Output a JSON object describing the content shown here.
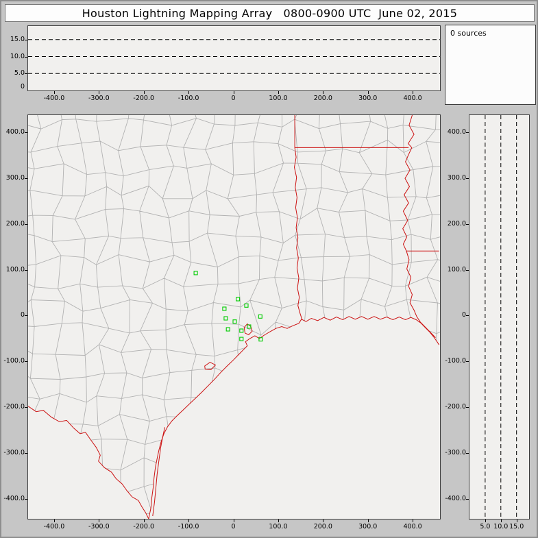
{
  "title": "Houston Lightning Mapping Array   0800-0900 UTC  June 02, 2015",
  "sources_label": "0 sources",
  "colors": {
    "page_bg": "#c6c6c6",
    "panel_bg": "#f1f0ee",
    "state_border": "#cc1111",
    "county": "#b2b2b2",
    "station": "#00cc00",
    "gridline": "#000000"
  },
  "axes": {
    "ew": {
      "min": -458,
      "max": 461,
      "values": [
        -400,
        -300,
        -200,
        -100,
        0,
        100,
        200,
        300,
        400
      ],
      "labels": [
        "-400.0",
        "-300.0",
        "-200.0",
        "-100.0",
        "0",
        "100.0",
        "200.0",
        "300.0",
        "400.0"
      ]
    },
    "ns": {
      "min": -444,
      "max": 438,
      "values": [
        400,
        300,
        200,
        100,
        0,
        -100,
        -200,
        -300,
        -400
      ],
      "labels": [
        "400.0",
        "300.0",
        "200.0",
        "100.0",
        "0",
        "-100.0",
        "-200.0",
        "-300.0",
        "-400.0"
      ]
    },
    "alt": {
      "min": 0,
      "max": 19,
      "values": [
        15,
        10,
        5
      ],
      "labels": [
        "15.0",
        "10.0",
        "5.0"
      ],
      "bottom_values": [
        5,
        10,
        15
      ],
      "bottom_labels": [
        "5.0",
        "10.0",
        "15.0"
      ],
      "zero_label": "0"
    }
  },
  "chart_data": {
    "type": "scatter",
    "title": "Houston Lightning Mapping Array 0800-0900 UTC June 02, 2015",
    "sources_count": 0,
    "sources_label": "0 sources",
    "plan_view": {
      "xlim": [
        -458,
        461
      ],
      "ylim": [
        -444,
        438
      ],
      "xticks": [
        -400,
        -300,
        -200,
        -100,
        0,
        100,
        200,
        300,
        400
      ],
      "yticks": [
        -400,
        -300,
        -200,
        -100,
        0,
        100,
        200,
        300,
        400
      ],
      "grid": false,
      "basemap": "Texas/Louisiana counties with state borders and Gulf coastline"
    },
    "altitude_panels": {
      "lim": [
        0,
        19
      ],
      "ticks": [
        5,
        10,
        15
      ],
      "gridline_style": "dashed",
      "points": []
    },
    "series": [
      {
        "name": "LMA stations",
        "marker": "open-green-square",
        "points_km_east_north": [
          [
            -84,
            93
          ],
          [
            10,
            36
          ],
          [
            -20,
            15
          ],
          [
            29,
            22
          ],
          [
            -17,
            -6
          ],
          [
            3,
            -13
          ],
          [
            -12,
            -30
          ],
          [
            18,
            -33
          ],
          [
            35,
            -24
          ],
          [
            60,
            -2
          ],
          [
            18,
            -51
          ],
          [
            61,
            -52
          ]
        ]
      }
    ]
  },
  "map": {
    "rio_grande": [
      [
        -458,
        -198
      ],
      [
        -440,
        -210
      ],
      [
        -424,
        -207
      ],
      [
        -406,
        -222
      ],
      [
        -388,
        -232
      ],
      [
        -372,
        -229
      ],
      [
        -356,
        -246
      ],
      [
        -342,
        -258
      ],
      [
        -330,
        -255
      ],
      [
        -318,
        -272
      ],
      [
        -306,
        -288
      ],
      [
        -297,
        -305
      ],
      [
        -301,
        -318
      ],
      [
        -288,
        -332
      ],
      [
        -272,
        -342
      ],
      [
        -262,
        -356
      ],
      [
        -248,
        -368
      ],
      [
        -238,
        -382
      ],
      [
        -226,
        -396
      ],
      [
        -212,
        -404
      ],
      [
        -204,
        -418
      ],
      [
        -196,
        -430
      ],
      [
        -189,
        -444
      ]
    ],
    "coast": [
      [
        -189,
        -444
      ],
      [
        -184,
        -420
      ],
      [
        -182,
        -398
      ],
      [
        -179,
        -376
      ],
      [
        -177,
        -354
      ],
      [
        -174,
        -332
      ],
      [
        -170,
        -312
      ],
      [
        -166,
        -293
      ],
      [
        -161,
        -275
      ],
      [
        -155,
        -258
      ],
      [
        -147,
        -243
      ],
      [
        -137,
        -230
      ],
      [
        -125,
        -218
      ],
      [
        -112,
        -206
      ],
      [
        -98,
        -193
      ],
      [
        -84,
        -180
      ],
      [
        -70,
        -167
      ],
      [
        -56,
        -153
      ],
      [
        -42,
        -139
      ],
      [
        -28,
        -124
      ],
      [
        -14,
        -110
      ],
      [
        0,
        -97
      ],
      [
        11,
        -86
      ],
      [
        21,
        -76
      ],
      [
        31,
        -66
      ],
      [
        27,
        -57
      ],
      [
        37,
        -50
      ],
      [
        48,
        -44
      ],
      [
        58,
        -50
      ],
      [
        70,
        -42
      ],
      [
        82,
        -35
      ],
      [
        95,
        -28
      ],
      [
        108,
        -24
      ],
      [
        120,
        -28
      ],
      [
        133,
        -22
      ],
      [
        146,
        -17
      ],
      [
        152,
        -8
      ],
      [
        162,
        -13
      ],
      [
        174,
        -6
      ],
      [
        188,
        -11
      ],
      [
        202,
        -4
      ],
      [
        216,
        -10
      ],
      [
        230,
        -3
      ],
      [
        244,
        -9
      ],
      [
        258,
        -2
      ],
      [
        272,
        -8
      ],
      [
        286,
        -2
      ],
      [
        300,
        -8
      ],
      [
        314,
        -2
      ],
      [
        328,
        -8
      ],
      [
        342,
        -3
      ],
      [
        356,
        -9
      ],
      [
        370,
        -3
      ],
      [
        384,
        -9
      ],
      [
        396,
        -4
      ],
      [
        408,
        -9
      ],
      [
        418,
        -16
      ],
      [
        428,
        -26
      ],
      [
        438,
        -36
      ],
      [
        448,
        -48
      ],
      [
        455,
        -58
      ],
      [
        459,
        -64
      ]
    ],
    "barrier_island": [
      [
        -180,
        -438
      ],
      [
        -176,
        -408
      ],
      [
        -173,
        -377
      ],
      [
        -170,
        -346
      ],
      [
        -166,
        -315
      ],
      [
        -162,
        -287
      ],
      [
        -157,
        -262
      ],
      [
        -153,
        -244
      ]
    ],
    "sabine_tx_la": [
      [
        137,
        438
      ],
      [
        137,
        400
      ],
      [
        137,
        367
      ],
      [
        140,
        346
      ],
      [
        136,
        324
      ],
      [
        141,
        302
      ],
      [
        138,
        280
      ],
      [
        142,
        258
      ],
      [
        139,
        236
      ],
      [
        143,
        214
      ],
      [
        140,
        192
      ],
      [
        144,
        170
      ],
      [
        141,
        148
      ],
      [
        145,
        126
      ],
      [
        142,
        104
      ],
      [
        146,
        82
      ],
      [
        143,
        60
      ],
      [
        147,
        40
      ],
      [
        144,
        22
      ],
      [
        149,
        4
      ],
      [
        153,
        -8
      ]
    ],
    "la_ar": [
      [
        137,
        367
      ],
      [
        180,
        367
      ],
      [
        224,
        367
      ],
      [
        268,
        367
      ],
      [
        312,
        367
      ],
      [
        356,
        367
      ],
      [
        391,
        367
      ]
    ],
    "miss_upper": [
      [
        399,
        438
      ],
      [
        392,
        416
      ],
      [
        403,
        396
      ],
      [
        390,
        376
      ],
      [
        398,
        367
      ],
      [
        391,
        352
      ],
      [
        384,
        336
      ],
      [
        394,
        318
      ],
      [
        383,
        300
      ],
      [
        393,
        282
      ],
      [
        381,
        264
      ],
      [
        391,
        246
      ],
      [
        379,
        228
      ],
      [
        389,
        208
      ],
      [
        378,
        190
      ],
      [
        387,
        172
      ],
      [
        379,
        156
      ],
      [
        386,
        141
      ]
    ],
    "la_ms": [
      [
        386,
        141
      ],
      [
        412,
        141
      ],
      [
        436,
        141
      ],
      [
        459,
        141
      ]
    ],
    "miss_lower": [
      [
        386,
        141
      ],
      [
        392,
        122
      ],
      [
        387,
        102
      ],
      [
        396,
        84
      ],
      [
        391,
        64
      ],
      [
        399,
        46
      ],
      [
        394,
        28
      ],
      [
        403,
        12
      ],
      [
        409,
        -2
      ],
      [
        417,
        -14
      ],
      [
        429,
        -26
      ],
      [
        441,
        -38
      ],
      [
        451,
        -48
      ]
    ],
    "bays": [
      [
        [
          24,
          -26
        ],
        [
          31,
          -18
        ],
        [
          39,
          -24
        ],
        [
          42,
          -34
        ],
        [
          34,
          -42
        ],
        [
          26,
          -38
        ],
        [
          24,
          -26
        ]
      ],
      [
        [
          -64,
          -110
        ],
        [
          -52,
          -102
        ],
        [
          -40,
          -108
        ],
        [
          -50,
          -118
        ],
        [
          -63,
          -117
        ],
        [
          -64,
          -110
        ]
      ]
    ]
  }
}
